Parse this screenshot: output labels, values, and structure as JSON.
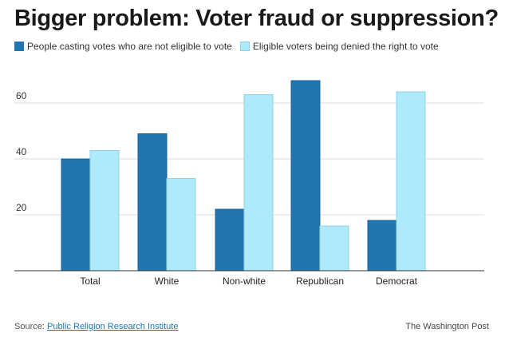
{
  "title": "Bigger problem: Voter fraud or suppression?",
  "colors": {
    "series_dark": "#2176b0",
    "series_light": "#aeeafb",
    "light_stroke": "#8fd3e8",
    "grid": "#dddddd",
    "axis": "#333333"
  },
  "chart_data": {
    "type": "bar",
    "title": "Bigger problem: Voter fraud or suppression?",
    "xlabel": "",
    "ylabel": "",
    "categories": [
      "Total",
      "White",
      "Non-white",
      "Republican",
      "Democrat"
    ],
    "series": [
      {
        "name": "People casting votes who are not eligible to vote",
        "values": [
          40,
          49,
          22,
          68,
          18
        ]
      },
      {
        "name": "Eligible voters being denied the right to vote",
        "values": [
          43,
          33,
          63,
          16,
          64
        ]
      }
    ],
    "ylim": [
      0,
      70
    ],
    "yticks": [
      "20",
      "40",
      "60"
    ],
    "grid": true,
    "legend_position": "top-left"
  },
  "footer": {
    "source_prefix": "Source:",
    "source_link": "Public Religion Research Institute",
    "credit": "The Washington Post"
  }
}
